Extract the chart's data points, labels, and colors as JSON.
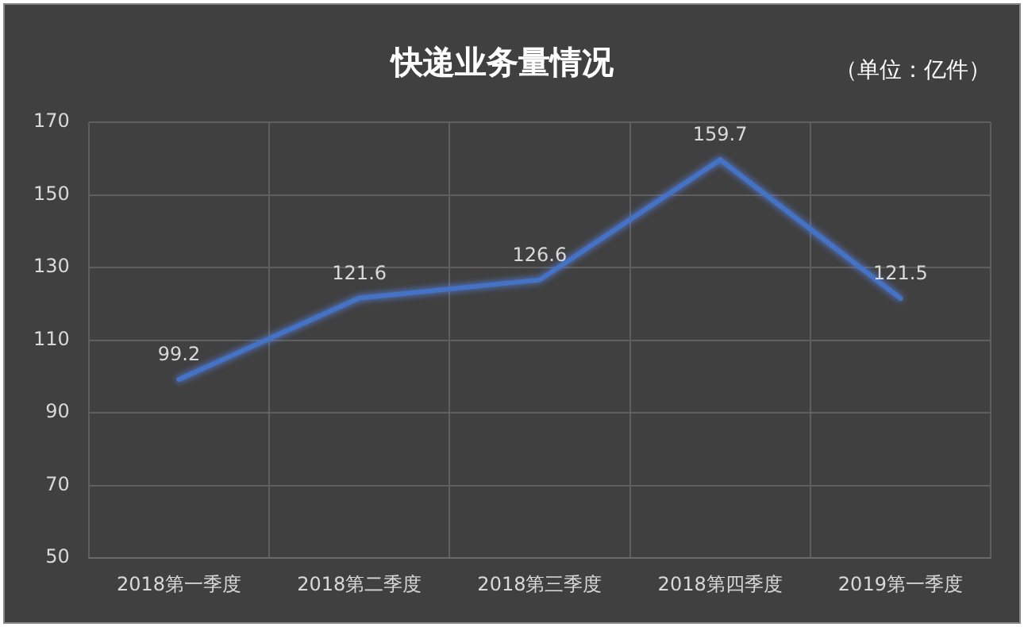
{
  "chart_data": {
    "type": "line",
    "title": "快递业务量情况",
    "subtitle": "（单位：亿件）",
    "categories": [
      "2018第一季度",
      "2018第二季度",
      "2018第三季度",
      "2018第四季度",
      "2019第一季度"
    ],
    "series": [
      {
        "color": "#4472c4",
        "values": [
          99.2,
          121.6,
          126.6,
          159.7,
          121.5
        ]
      }
    ],
    "ylim": [
      50,
      170
    ],
    "yticks": [
      50,
      70,
      90,
      110,
      130,
      150,
      170
    ],
    "grid": true,
    "legend": false,
    "marker": "none",
    "line_style": "solid",
    "data_labels": true
  }
}
